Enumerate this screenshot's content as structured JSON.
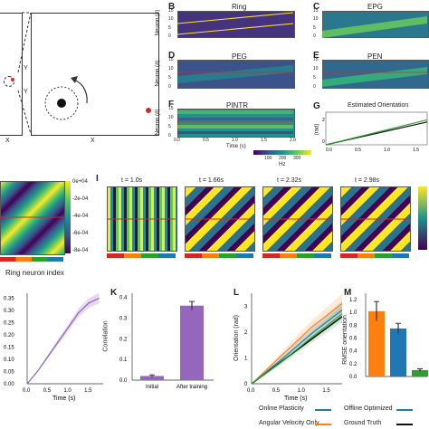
{
  "panels": {
    "A": {
      "axis_x": "X",
      "axis_y_marks": [
        "Y",
        "Y"
      ]
    },
    "A2": {
      "axis_x": "X"
    },
    "B": {
      "letter": "B",
      "title": "Ring",
      "ylabel": "Neuron (#)",
      "yticks": [
        "15",
        "10",
        "5",
        "0"
      ]
    },
    "C": {
      "letter": "C",
      "title": "EPG",
      "yticks": [
        "15",
        "10",
        "5",
        "0"
      ]
    },
    "D": {
      "letter": "D",
      "title": "PEG",
      "ylabel": "Neuron (#)",
      "yticks": [
        "15",
        "10",
        "5",
        "0"
      ]
    },
    "E": {
      "letter": "E",
      "title": "PEN",
      "yticks": [
        "15",
        "10",
        "5",
        "0"
      ]
    },
    "F": {
      "letter": "F",
      "title": "PINTR",
      "ylabel": "Neuron (#)",
      "yticks": [
        "15",
        "10",
        "5",
        "0"
      ],
      "xticks": [
        "0.0",
        "0.5",
        "1.0",
        "1.5",
        "2.0"
      ],
      "xlabel": "Time (s)"
    },
    "colorbar_F": {
      "ticks": [
        "100",
        "200",
        "300"
      ],
      "unit": "Hz"
    },
    "G": {
      "letter": "G",
      "title": "Estimated Orientation",
      "ylabel": "(rad)",
      "yticks": [
        "2",
        "0"
      ],
      "xticks": [
        "0.0",
        "0.5",
        "1.0",
        "1.5"
      ],
      "xlabel": "Time (s)"
    },
    "H": {
      "colorbar_ticks": [
        "0e+04",
        "-2e-04",
        "-4e-04",
        "-6e-04",
        "-8e-04"
      ],
      "xlabel": "Ring neuron index"
    },
    "I": {
      "letter": "I",
      "times": [
        "t = 1.0s",
        "t = 1.66s",
        "t = 2.32s",
        "t = 2.98s"
      ]
    },
    "J": {
      "yticks": [
        "0.35",
        "0.30",
        "0.25",
        "0.20",
        "0.15",
        "0.10",
        "0.05",
        "0.00"
      ],
      "xticks": [
        "0.0",
        "0.5",
        "1.0",
        "1.5"
      ],
      "xlabel": "Time (s)"
    },
    "K": {
      "letter": "K",
      "ylabel": "Correlation",
      "yticks": [
        "0.4",
        "0.3",
        "0.2",
        "0.1",
        "0.0"
      ]
    },
    "L": {
      "letter": "L",
      "ylabel": "Orientation (rad)",
      "yticks": [
        "3",
        "2",
        "1",
        "0"
      ],
      "xticks": [
        "0.0",
        "0.5",
        "1.0",
        "1.5"
      ],
      "xlabel": "Time (s)"
    },
    "M": {
      "letter": "M",
      "ylabel": "RMSE orientation",
      "yticks": [
        "1.2",
        "1.0",
        "0.8",
        "0.6",
        "0.4",
        "0.2",
        "0.0"
      ]
    }
  },
  "legend": {
    "items": [
      {
        "label": "Online Plasticity",
        "color": "#1f77b4"
      },
      {
        "label": "Offline Optimized",
        "color": "#1f77b4"
      },
      {
        "label": "Angular Velocity Only",
        "color": "#ff7f0e"
      },
      {
        "label": "Ground Truth",
        "color": "#111111"
      }
    ]
  },
  "colors": {
    "viridis_dark": "#440154",
    "viridis_mid": "#21918c",
    "viridis_light": "#fde725",
    "purple": "#9467bd",
    "orange": "#ff7f0e",
    "blue": "#1f77b4",
    "green": "#2ca02c",
    "red": "#d62728"
  },
  "chart_data": [
    {
      "id": "J",
      "type": "line",
      "x": [
        0.0,
        0.25,
        0.5,
        0.75,
        1.0,
        1.25,
        1.5,
        1.75
      ],
      "y": [
        0.0,
        0.05,
        0.11,
        0.17,
        0.23,
        0.29,
        0.33,
        0.35
      ],
      "ylim": [
        0.0,
        0.37
      ],
      "xlim": [
        0.0,
        1.85
      ],
      "xlabel": "Time (s)"
    },
    {
      "id": "K",
      "type": "bar",
      "categories": [
        "Initial",
        "After training"
      ],
      "values": [
        0.02,
        0.36
      ],
      "errors": [
        0.005,
        0.02
      ],
      "ylabel": "Correlation",
      "ylim": [
        0.0,
        0.42
      ]
    },
    {
      "id": "L",
      "type": "line",
      "xlabel": "Time (s)",
      "ylabel": "Orientation (rad)",
      "ylim": [
        0,
        3.5
      ],
      "xlim": [
        0,
        1.8
      ],
      "series": [
        {
          "name": "Ground Truth",
          "x": [
            0.0,
            1.8
          ],
          "y": [
            0.0,
            2.6
          ]
        },
        {
          "name": "Angular Velocity Only",
          "x": [
            0.0,
            0.6,
            1.2,
            1.8
          ],
          "y": [
            0.0,
            1.1,
            2.2,
            3.1
          ]
        },
        {
          "name": "Offline Optimized",
          "x": [
            0.0,
            0.6,
            1.2,
            1.8
          ],
          "y": [
            0.0,
            0.95,
            1.95,
            2.85
          ]
        },
        {
          "name": "Online Plasticity",
          "x": [
            0.0,
            0.6,
            1.2,
            1.8
          ],
          "y": [
            0.0,
            0.85,
            1.8,
            2.7
          ]
        }
      ]
    },
    {
      "id": "M",
      "type": "bar",
      "ylabel": "RMSE orientation",
      "ylim": [
        0.0,
        1.3
      ],
      "categories": [
        "Angular Velocity Only",
        "Offline Optimized",
        "Online Plasticity"
      ],
      "values": [
        1.02,
        0.75,
        0.1
      ],
      "errors": [
        0.15,
        0.08,
        0.02
      ]
    },
    {
      "id": "G",
      "type": "line",
      "ylabel": "(rad)",
      "xlabel": "Time (s)",
      "ylim": [
        0,
        3
      ],
      "xlim": [
        0,
        1.7
      ],
      "series": [
        {
          "name": "",
          "x": [
            0.0,
            1.7
          ],
          "y": [
            0.0,
            2.1
          ]
        },
        {
          "name": "",
          "x": [
            0.0,
            1.7
          ],
          "y": [
            0.0,
            2.3
          ]
        }
      ]
    }
  ]
}
